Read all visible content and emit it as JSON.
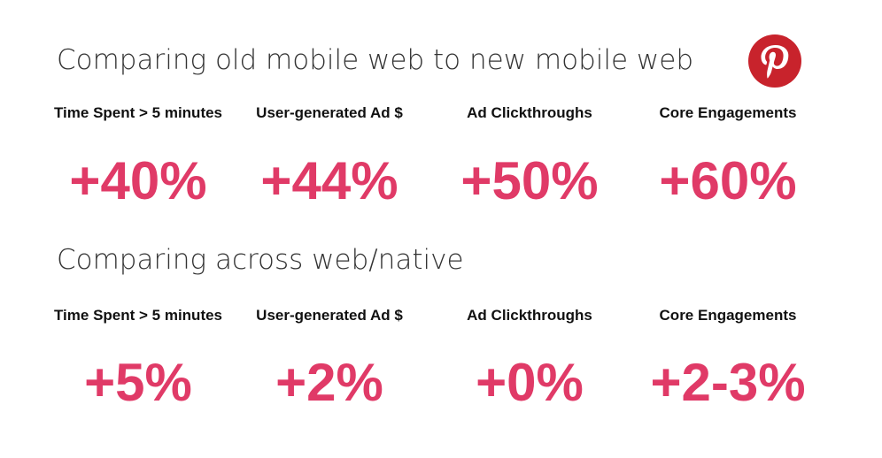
{
  "section1": {
    "title": "Comparing old mobile web to new mobile web",
    "metrics": [
      {
        "label": "Time Spent > 5 minutes",
        "value": "+40%"
      },
      {
        "label": "User-generated Ad $",
        "value": "+44%"
      },
      {
        "label": "Ad Clickthroughs",
        "value": "+50%"
      },
      {
        "label": "Core Engagements",
        "value": "+60%"
      }
    ]
  },
  "section2": {
    "title": "Comparing across web/native",
    "metrics": [
      {
        "label": "Time Spent > 5 minutes",
        "value": "+5%"
      },
      {
        "label": "User-generated Ad $",
        "value": "+2%"
      },
      {
        "label": "Ad Clickthroughs",
        "value": "+0%"
      },
      {
        "label": "Core Engagements",
        "value": "+2-3%"
      }
    ]
  },
  "logo": {
    "icon": "pinterest-logo-icon",
    "color": "#c8232c"
  },
  "colors": {
    "accent": "#e03a67",
    "text": "#111111",
    "title": "#333333"
  }
}
